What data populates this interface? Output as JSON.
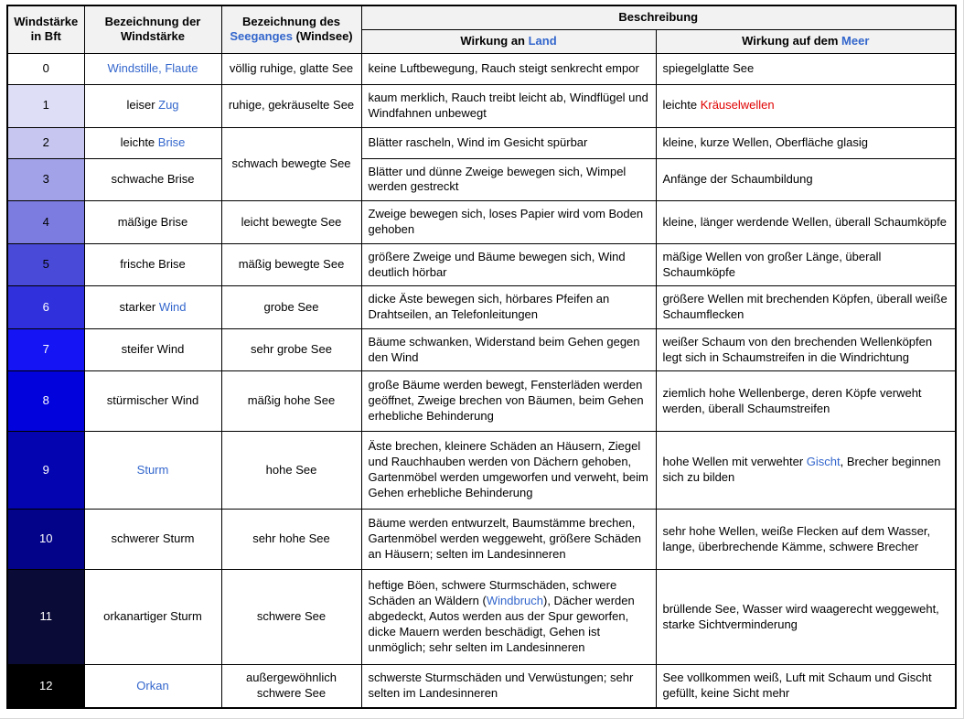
{
  "colors": {
    "link": "#3366cc",
    "red_link": "#e00000",
    "header_bg": "#f2f2f2",
    "border": "#000000"
  },
  "table": {
    "header": {
      "col_bft": "Windstärke\nin Bft",
      "col_name": "Bezeichnung der Windstärke",
      "col_sea": [
        {
          "t": "Bezeichnung des "
        },
        {
          "t": "Seeganges",
          "c": "link"
        },
        {
          "t": " (Windsee)"
        }
      ],
      "col_desc": "Beschreibung",
      "col_land": [
        {
          "t": "Wirkung an "
        },
        {
          "t": "Land",
          "c": "link"
        }
      ],
      "col_meer": [
        {
          "t": "Wirkung auf dem "
        },
        {
          "t": "Meer",
          "c": "link"
        }
      ]
    },
    "rows": [
      {
        "bft": "0",
        "bg": "#ffffff",
        "fg": "#000000",
        "name": [
          {
            "t": "Windstille, Flaute",
            "c": "link"
          }
        ],
        "sea": {
          "rowspan": 1,
          "segments": [
            {
              "t": "völlig ruhige, glatte See"
            }
          ]
        },
        "land": [
          {
            "t": "keine Luftbewegung, Rauch steigt senkrecht empor"
          }
        ],
        "meer": [
          {
            "t": "spiegelglatte See"
          }
        ]
      },
      {
        "bft": "1",
        "bg": "#dedef7",
        "fg": "#000000",
        "name": [
          {
            "t": "leiser "
          },
          {
            "t": "Zug",
            "c": "link"
          }
        ],
        "sea": {
          "rowspan": 1,
          "segments": [
            {
              "t": "ruhige, gekräuselte See"
            }
          ]
        },
        "land": [
          {
            "t": "kaum merklich, Rauch treibt leicht ab, Windflügel und Windfahnen unbewegt"
          }
        ],
        "meer": [
          {
            "t": "leichte "
          },
          {
            "t": "Kräuselwellen",
            "c": "red"
          }
        ]
      },
      {
        "bft": "2",
        "bg": "#c6c6f0",
        "fg": "#000000",
        "name": [
          {
            "t": "leichte "
          },
          {
            "t": "Brise",
            "c": "link"
          }
        ],
        "sea": {
          "rowspan": 2,
          "segments": [
            {
              "t": "schwach bewegte See"
            }
          ]
        },
        "land": [
          {
            "t": "Blätter rascheln, Wind im Gesicht spürbar"
          }
        ],
        "meer": [
          {
            "t": "kleine, kurze Wellen, Oberfläche glasig"
          }
        ]
      },
      {
        "bft": "3",
        "bg": "#a2a2e8",
        "fg": "#000000",
        "name": [
          {
            "t": "schwache Brise"
          }
        ],
        "sea": null,
        "land": [
          {
            "t": "Blätter und dünne Zweige bewegen sich, Wimpel werden gestreckt"
          }
        ],
        "meer": [
          {
            "t": "Anfänge der Schaumbildung"
          }
        ]
      },
      {
        "bft": "4",
        "bg": "#7c7ce0",
        "fg": "#000000",
        "name": [
          {
            "t": "mäßige Brise"
          }
        ],
        "sea": {
          "rowspan": 1,
          "segments": [
            {
              "t": "leicht bewegte See"
            }
          ]
        },
        "land": [
          {
            "t": "Zweige bewegen sich, loses Papier wird vom Boden gehoben"
          }
        ],
        "meer": [
          {
            "t": "kleine, länger werdende Wellen, überall Schaumköpfe"
          }
        ]
      },
      {
        "bft": "5",
        "bg": "#4a4ad8",
        "fg": "#000000",
        "name": [
          {
            "t": "frische Brise"
          }
        ],
        "sea": {
          "rowspan": 1,
          "segments": [
            {
              "t": "mäßig bewegte See"
            }
          ]
        },
        "land": [
          {
            "t": "größere Zweige und Bäume bewegen sich, Wind deutlich hörbar"
          }
        ],
        "meer": [
          {
            "t": "mäßige Wellen von großer Länge, überall Schaumköpfe"
          }
        ]
      },
      {
        "bft": "6",
        "bg": "#3030dd",
        "fg": "#ffffff",
        "name": [
          {
            "t": "starker "
          },
          {
            "t": "Wind",
            "c": "link"
          }
        ],
        "sea": {
          "rowspan": 1,
          "segments": [
            {
              "t": "grobe See"
            }
          ]
        },
        "land": [
          {
            "t": "dicke Äste bewegen sich, hörbares Pfeifen an Drahtseilen, an Telefonleitungen"
          }
        ],
        "meer": [
          {
            "t": "größere Wellen mit brechenden Köpfen, überall weiße Schaumflecken"
          }
        ]
      },
      {
        "bft": "7",
        "bg": "#1414f5",
        "fg": "#ffffff",
        "name": [
          {
            "t": "steifer Wind"
          }
        ],
        "sea": {
          "rowspan": 1,
          "segments": [
            {
              "t": "sehr grobe See"
            }
          ]
        },
        "land": [
          {
            "t": "Bäume schwanken, Widerstand beim Gehen gegen den Wind"
          }
        ],
        "meer": [
          {
            "t": "weißer Schaum von den brechenden Wellenköpfen legt sich in Schaumstreifen in die Windrichtung"
          }
        ]
      },
      {
        "bft": "8",
        "bg": "#0202dd",
        "fg": "#ffffff",
        "name": [
          {
            "t": "stürmischer Wind"
          }
        ],
        "sea": {
          "rowspan": 1,
          "segments": [
            {
              "t": "mäßig hohe See"
            }
          ]
        },
        "land": [
          {
            "t": "große Bäume werden bewegt, Fensterläden werden geöffnet, Zweige brechen von Bäumen, beim Gehen erhebliche Behinderung"
          }
        ],
        "meer": [
          {
            "t": "ziemlich hohe Wellenberge, deren Köpfe verweht werden, überall Schaumstreifen"
          }
        ]
      },
      {
        "bft": "9",
        "bg": "#0404b0",
        "fg": "#ffffff",
        "name": [
          {
            "t": "Sturm",
            "c": "link"
          }
        ],
        "sea": {
          "rowspan": 1,
          "segments": [
            {
              "t": "hohe See"
            }
          ]
        },
        "land": [
          {
            "t": "Äste brechen, kleinere Schäden an Häusern, Ziegel und Rauchhauben werden von Dächern gehoben, Gartenmöbel werden umgeworfen und verweht, beim Gehen erhebliche Behinderung"
          }
        ],
        "meer": [
          {
            "t": "hohe Wellen mit verwehter "
          },
          {
            "t": "Gischt",
            "c": "link"
          },
          {
            "t": ", Brecher beginnen sich zu bilden"
          }
        ]
      },
      {
        "bft": "10",
        "bg": "#03038a",
        "fg": "#ffffff",
        "name": [
          {
            "t": "schwerer Sturm"
          }
        ],
        "sea": {
          "rowspan": 1,
          "segments": [
            {
              "t": "sehr hohe See"
            }
          ]
        },
        "land": [
          {
            "t": "Bäume werden entwurzelt, Baumstämme brechen, Gartenmöbel werden weggeweht, größere Schäden an Häusern; selten im Landesinneren"
          }
        ],
        "meer": [
          {
            "t": "sehr hohe Wellen, weiße Flecken auf dem Wasser, lange, überbrechende Kämme, schwere Brecher"
          }
        ]
      },
      {
        "bft": "11",
        "bg": "#0b0b38",
        "fg": "#ffffff",
        "name": [
          {
            "t": "orkanartiger Sturm"
          }
        ],
        "sea": {
          "rowspan": 1,
          "segments": [
            {
              "t": "schwere See"
            }
          ]
        },
        "land": [
          {
            "t": "heftige Böen, schwere Sturmschäden, schwere Schäden an Wäldern ("
          },
          {
            "t": "Windbruch",
            "c": "link"
          },
          {
            "t": "), Dächer werden abgedeckt, Autos werden aus der Spur geworfen, dicke Mauern werden beschädigt, Gehen ist unmöglich; sehr selten im Landesinneren"
          }
        ],
        "meer": [
          {
            "t": "brüllende See, Wasser wird waagerecht weggeweht, starke Sichtverminderung"
          }
        ]
      },
      {
        "bft": "12",
        "bg": "#000000",
        "fg": "#ffffff",
        "name": [
          {
            "t": "Orkan",
            "c": "link"
          }
        ],
        "sea": {
          "rowspan": 1,
          "segments": [
            {
              "t": "außergewöhnlich schwere See"
            }
          ]
        },
        "land": [
          {
            "t": "schwerste Sturmschäden und Verwüstungen; sehr selten im Landesinneren"
          }
        ],
        "meer": [
          {
            "t": "See vollkommen weiß, Luft mit Schaum und Gischt gefüllt, keine Sicht mehr"
          }
        ]
      }
    ]
  }
}
